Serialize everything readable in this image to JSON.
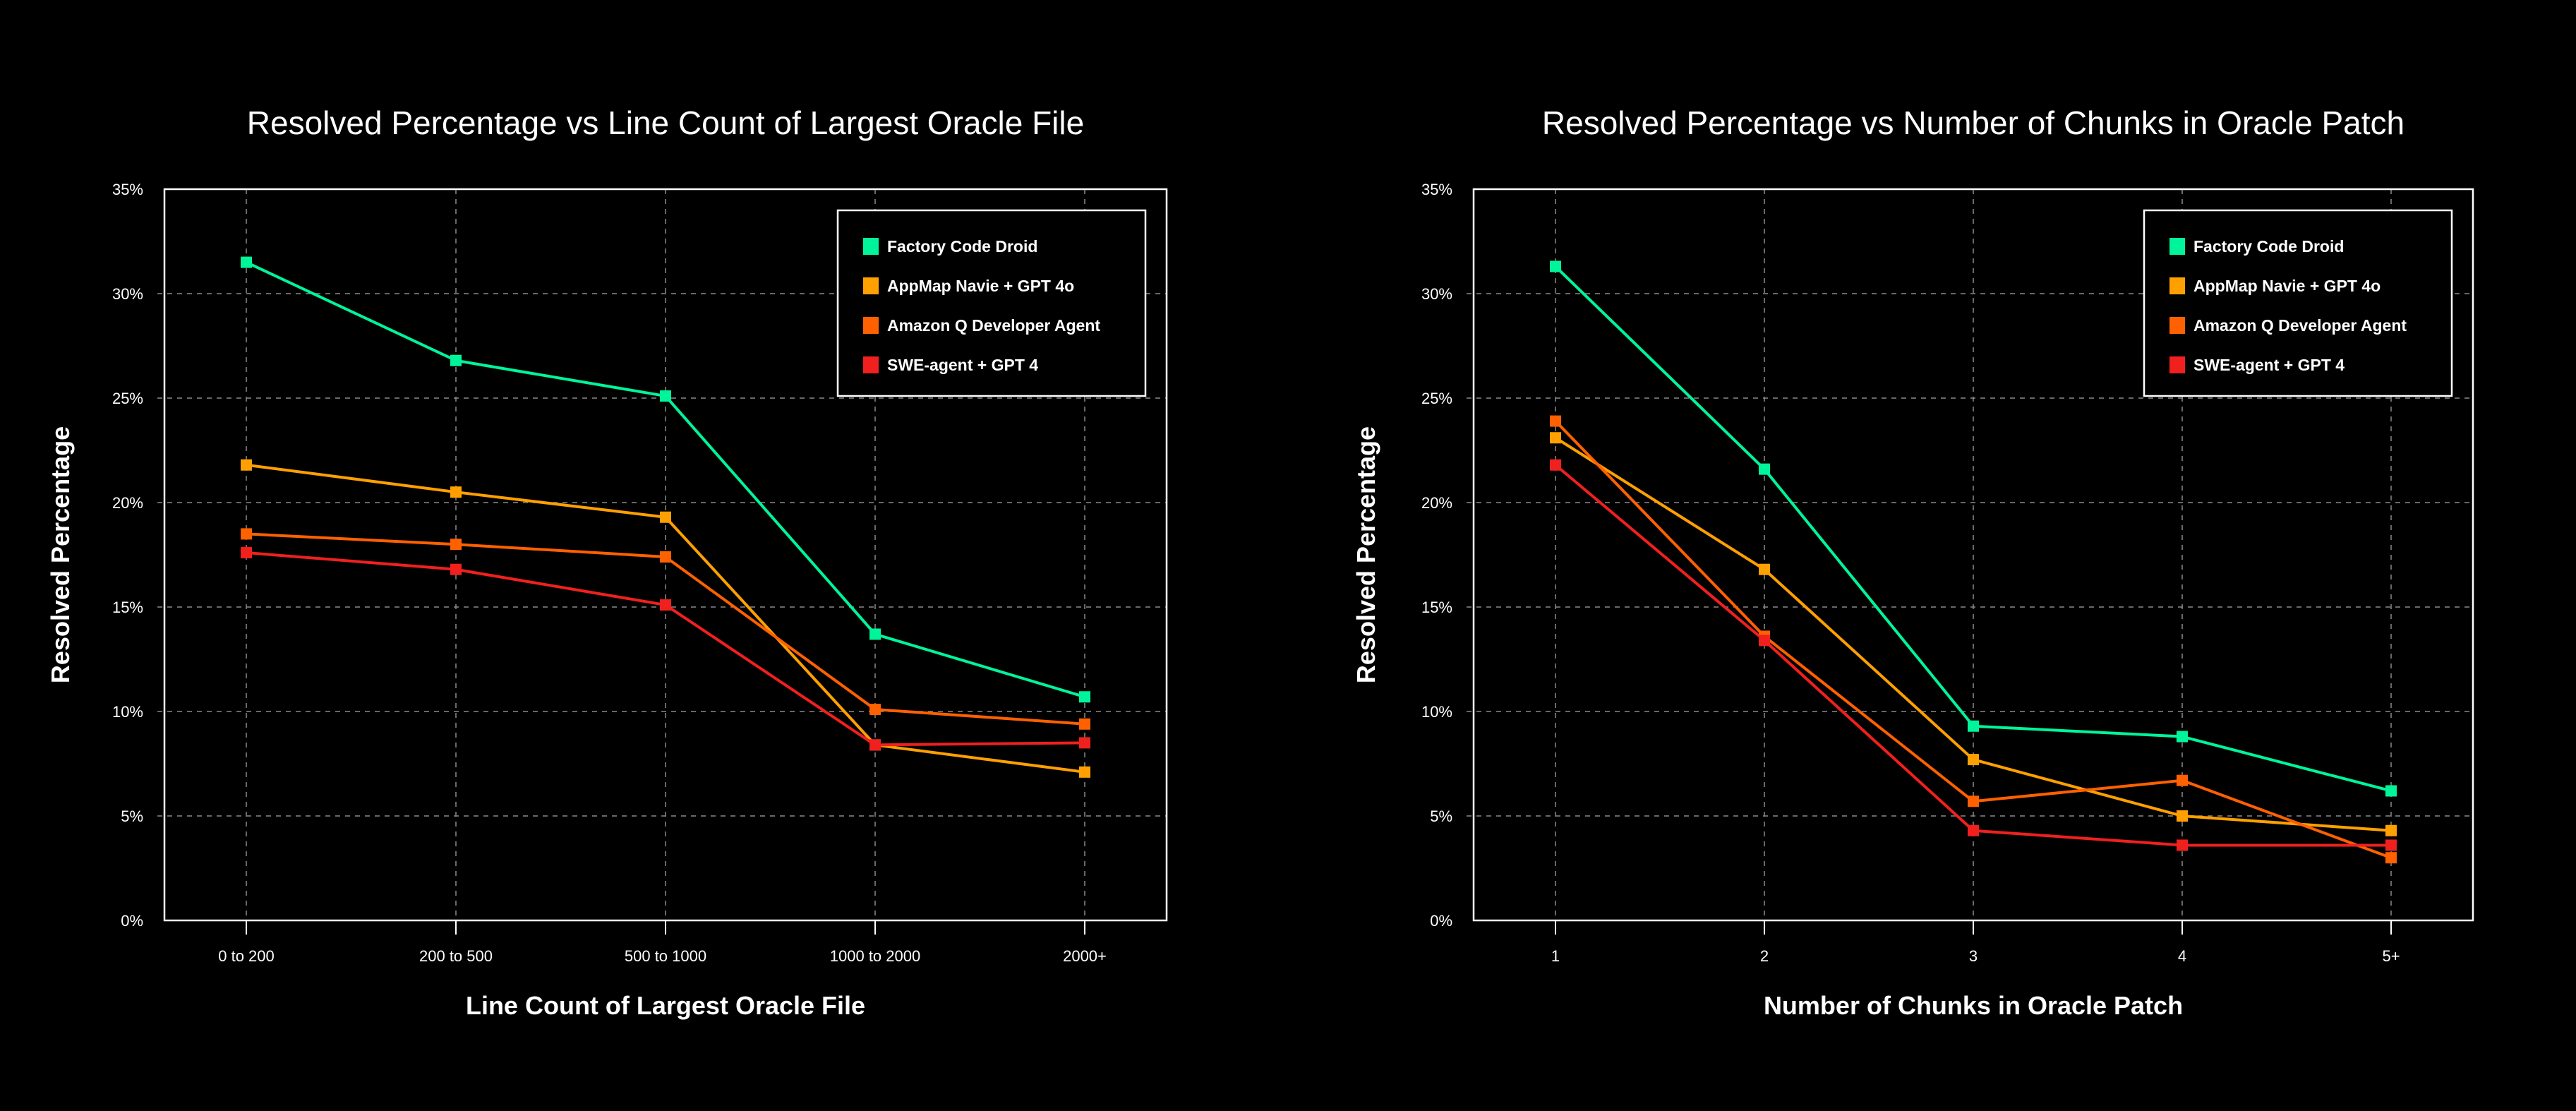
{
  "chart_data": [
    {
      "type": "line",
      "title": "Resolved Percentage vs Line Count of Largest Oracle File",
      "xlabel": "Line Count of Largest Oracle File",
      "ylabel": "Resolved Percentage",
      "categories": [
        "0 to 200",
        "200 to 500",
        "500 to 1000",
        "1000 to 2000",
        "2000+"
      ],
      "ylim": [
        0,
        35
      ],
      "yticks": [
        "0%",
        "5%",
        "10%",
        "15%",
        "20%",
        "25%",
        "30%",
        "35%"
      ],
      "grid": true,
      "legend_position": "top-right",
      "series": [
        {
          "name": "Factory Code Droid",
          "color": "#00f59b",
          "values": [
            31.5,
            26.8,
            25.1,
            13.7,
            10.7
          ]
        },
        {
          "name": "AppMap Navie + GPT 4o",
          "color": "#ffa000",
          "values": [
            21.8,
            20.5,
            19.3,
            8.4,
            7.1
          ]
        },
        {
          "name": "Amazon Q Developer Agent",
          "color": "#ff6000",
          "values": [
            18.5,
            18.0,
            17.4,
            10.1,
            9.4
          ]
        },
        {
          "name": "SWE-agent + GPT 4",
          "color": "#f0201e",
          "values": [
            17.6,
            16.8,
            15.1,
            8.4,
            8.5
          ]
        }
      ]
    },
    {
      "type": "line",
      "title": "Resolved Percentage vs  Number of Chunks in Oracle Patch",
      "xlabel": "Number of Chunks in Oracle Patch",
      "ylabel": "Resolved Percentage",
      "categories": [
        "1",
        "2",
        "3",
        "4",
        "5+"
      ],
      "ylim": [
        0,
        35
      ],
      "yticks": [
        "0%",
        "5%",
        "10%",
        "15%",
        "20%",
        "25%",
        "30%",
        "35%"
      ],
      "grid": true,
      "legend_position": "top-right",
      "series": [
        {
          "name": "Factory Code Droid",
          "color": "#00f59b",
          "values": [
            31.3,
            21.6,
            9.3,
            8.8,
            6.2
          ]
        },
        {
          "name": "AppMap Navie + GPT 4o",
          "color": "#ffa000",
          "values": [
            23.1,
            16.8,
            7.7,
            5.0,
            4.3
          ]
        },
        {
          "name": "Amazon Q Developer Agent",
          "color": "#ff6000",
          "values": [
            23.9,
            13.6,
            5.7,
            6.7,
            3.0
          ]
        },
        {
          "name": "SWE-agent + GPT 4",
          "color": "#f0201e",
          "values": [
            21.8,
            13.4,
            4.3,
            3.6,
            3.6
          ]
        }
      ]
    }
  ]
}
